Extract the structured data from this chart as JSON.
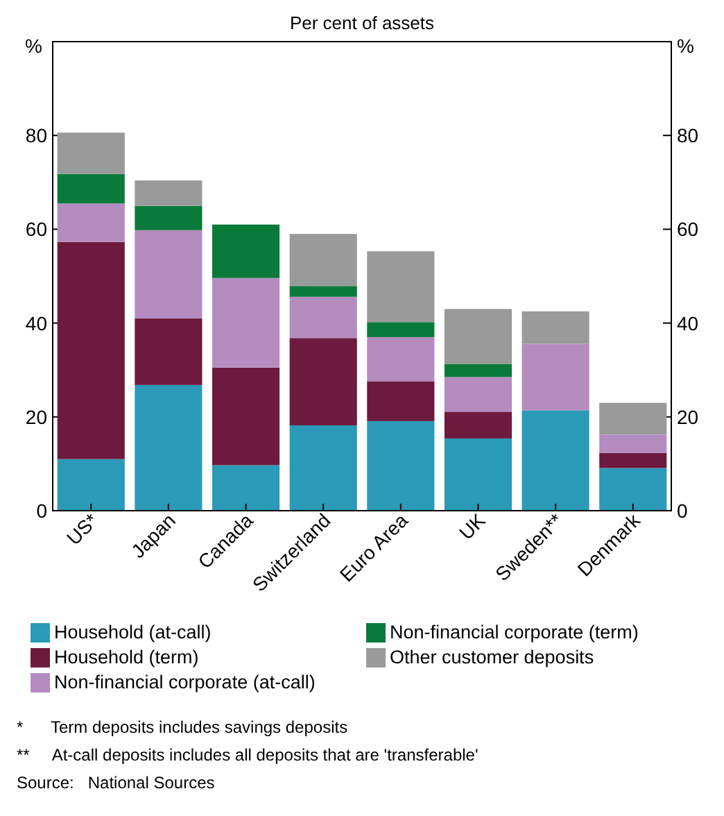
{
  "chart_data": {
    "type": "bar",
    "stacked": true,
    "title": "Per cent of assets",
    "ylabel": "%",
    "y2label": "%",
    "categories": [
      "US*",
      "Japan",
      "Canada",
      "Switzerland",
      "Euro Area",
      "UK",
      "Sweden**",
      "Denmark"
    ],
    "series": [
      {
        "name": "Household (at-call)",
        "color": "#2a9ab8",
        "values": [
          11,
          26.8,
          9.7,
          18.2,
          19.1,
          15.4,
          21.4,
          9.1
        ]
      },
      {
        "name": "Household (term)",
        "color": "#6d1a3e",
        "values": [
          46.3,
          14.2,
          20.8,
          18.6,
          8.5,
          5.7,
          0,
          3.2
        ]
      },
      {
        "name": "Non-financial corporate (at-call)",
        "color": "#b48cc0",
        "values": [
          8.2,
          18.8,
          19.1,
          8.8,
          9.4,
          7.4,
          14.2,
          3.9
        ]
      },
      {
        "name": "Non-financial corporate (term)",
        "color": "#0a7a3a",
        "values": [
          6.3,
          5.2,
          11.4,
          2.3,
          3.2,
          2.8,
          0,
          0
        ]
      },
      {
        "name": "Other customer deposits",
        "color": "#9a9a9a",
        "values": [
          8.8,
          5.4,
          0,
          11.1,
          15.1,
          11.7,
          6.9,
          6.8
        ]
      }
    ],
    "ylim": [
      0,
      100
    ],
    "yticks": [
      0,
      20,
      40,
      60,
      80
    ],
    "y2lim": [
      0,
      100
    ],
    "y2ticks": [
      0,
      20,
      40,
      60,
      80
    ],
    "grid": false,
    "legend": "bottom",
    "annotations": [
      "*      Term deposits includes savings deposits",
      "**     At-call deposits includes all deposits that are 'transferable'",
      "Source:   National Sources"
    ]
  }
}
